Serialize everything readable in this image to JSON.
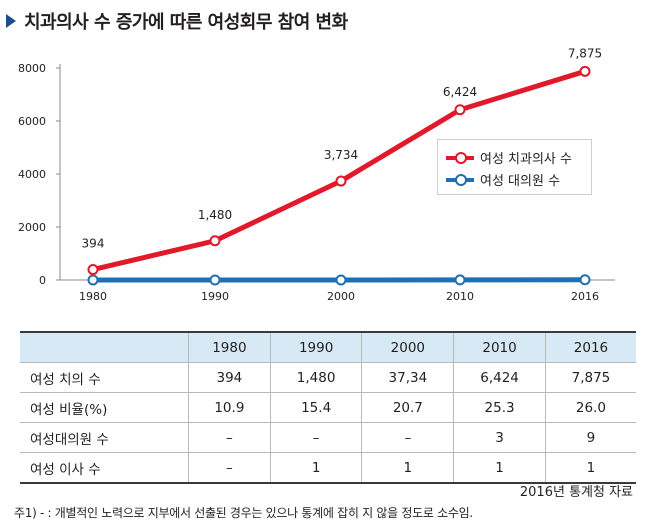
{
  "title": "치과의사 수 증가에 따른 여성회무 참여 변화",
  "chart_data": {
    "type": "line",
    "categories": [
      "1980",
      "1990",
      "2000",
      "2010",
      "2016"
    ],
    "y_ticks": [
      "0",
      "2000",
      "4000",
      "6000",
      "8000"
    ],
    "ylim": [
      0,
      8000
    ],
    "grid": false,
    "legend_position": "right",
    "series": [
      {
        "name": "여성 치과의사 수",
        "color": "#e2192b",
        "values": [
          394,
          1480,
          3734,
          6424,
          7875
        ],
        "labels": [
          "394",
          "1,480",
          "3,734",
          "6,424",
          "7,875"
        ]
      },
      {
        "name": "여성 대의원 수",
        "color": "#1f6fb2",
        "values": [
          0,
          0,
          0,
          3,
          9
        ]
      }
    ]
  },
  "table": {
    "header": [
      "",
      "1980",
      "1990",
      "2000",
      "2010",
      "2016"
    ],
    "rows": [
      [
        "여성 치의 수",
        "394",
        "1,480",
        "37,34",
        "6,424",
        "7,875"
      ],
      [
        "여성 비율(%)",
        "10.9",
        "15.4",
        "20.7",
        "25.3",
        "26.0"
      ],
      [
        "여성대의원 수",
        "–",
        "–",
        "–",
        "3",
        "9"
      ],
      [
        "여성 이사 수",
        "–",
        "1",
        "1",
        "1",
        "1"
      ]
    ]
  },
  "source": "2016년 통계청 자료",
  "note": "주1) - : 개별적인 노력으로 지부에서 선출된 경우는 있으나 통계에 잡히 지 않을 정도로 소수임."
}
